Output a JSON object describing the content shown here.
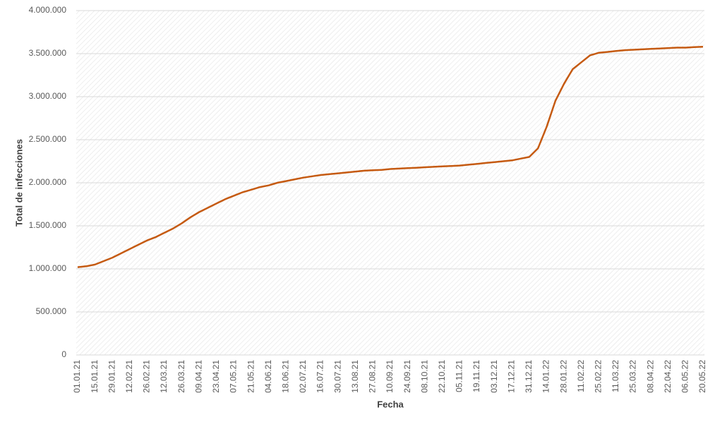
{
  "chart_data": {
    "type": "line",
    "x_label": "Fecha",
    "y_label": "Total de infecciones",
    "categories": [
      "01.01.21",
      null,
      "15.01.21",
      null,
      "29.01.21",
      null,
      "12.02.21",
      null,
      "26.02.21",
      null,
      "12.03.21",
      null,
      "26.03.21",
      null,
      "09.04.21",
      null,
      "23.04.21",
      null,
      "07.05.21",
      null,
      "21.05.21",
      null,
      "04.06.21",
      null,
      "18.06.21",
      null,
      "02.07.21",
      null,
      "16.07.21",
      null,
      "30.07.21",
      null,
      "13.08.21",
      null,
      "27.08.21",
      null,
      "10.09.21",
      null,
      "24.09.21",
      null,
      "08.10.21",
      null,
      "22.10.21",
      null,
      "05.11.21",
      null,
      "19.11.21",
      null,
      "03.12.21",
      null,
      "17.12.21",
      null,
      "31.12.21",
      null,
      "14.01.22",
      null,
      "28.01.22",
      null,
      "11.02.22",
      null,
      "25.02.22",
      null,
      "11.03.22",
      null,
      "25.03.22",
      null,
      "08.04.22",
      null,
      "22.04.22",
      null,
      "06.05.22",
      null,
      "20.05.22"
    ],
    "series": [
      {
        "name": "Total de infecciones",
        "color": "#c55a11",
        "values": [
          1020000,
          1030000,
          1050000,
          1090000,
          1130000,
          1180000,
          1230000,
          1280000,
          1330000,
          1370000,
          1420000,
          1470000,
          1530000,
          1600000,
          1660000,
          1710000,
          1760000,
          1810000,
          1850000,
          1890000,
          1920000,
          1950000,
          1970000,
          2000000,
          2020000,
          2040000,
          2060000,
          2075000,
          2090000,
          2100000,
          2110000,
          2120000,
          2130000,
          2140000,
          2145000,
          2150000,
          2160000,
          2165000,
          2170000,
          2175000,
          2180000,
          2185000,
          2190000,
          2195000,
          2200000,
          2210000,
          2220000,
          2230000,
          2240000,
          2250000,
          2260000,
          2280000,
          2300000,
          2400000,
          2650000,
          2950000,
          3150000,
          3320000,
          3400000,
          3480000,
          3510000,
          3520000,
          3530000,
          3540000,
          3545000,
          3550000,
          3555000,
          3560000,
          3565000,
          3570000,
          3570000,
          3575000,
          3580000
        ]
      }
    ],
    "ylim": [
      0,
      4000000
    ],
    "yticks": [
      0,
      {
        "value": 500000,
        "label": "500.000"
      },
      {
        "value": 1000000,
        "label": "1.000.000"
      },
      {
        "value": 1500000,
        "label": "1.500.000"
      },
      {
        "value": 2000000,
        "label": "2.000.000"
      },
      {
        "value": 2500000,
        "label": "2.500.000"
      },
      {
        "value": 3000000,
        "label": "3.000.000"
      },
      {
        "value": 3500000,
        "label": "3.500.000"
      },
      {
        "value": 4000000,
        "label": "4.000.000"
      }
    ],
    "grid": true
  }
}
